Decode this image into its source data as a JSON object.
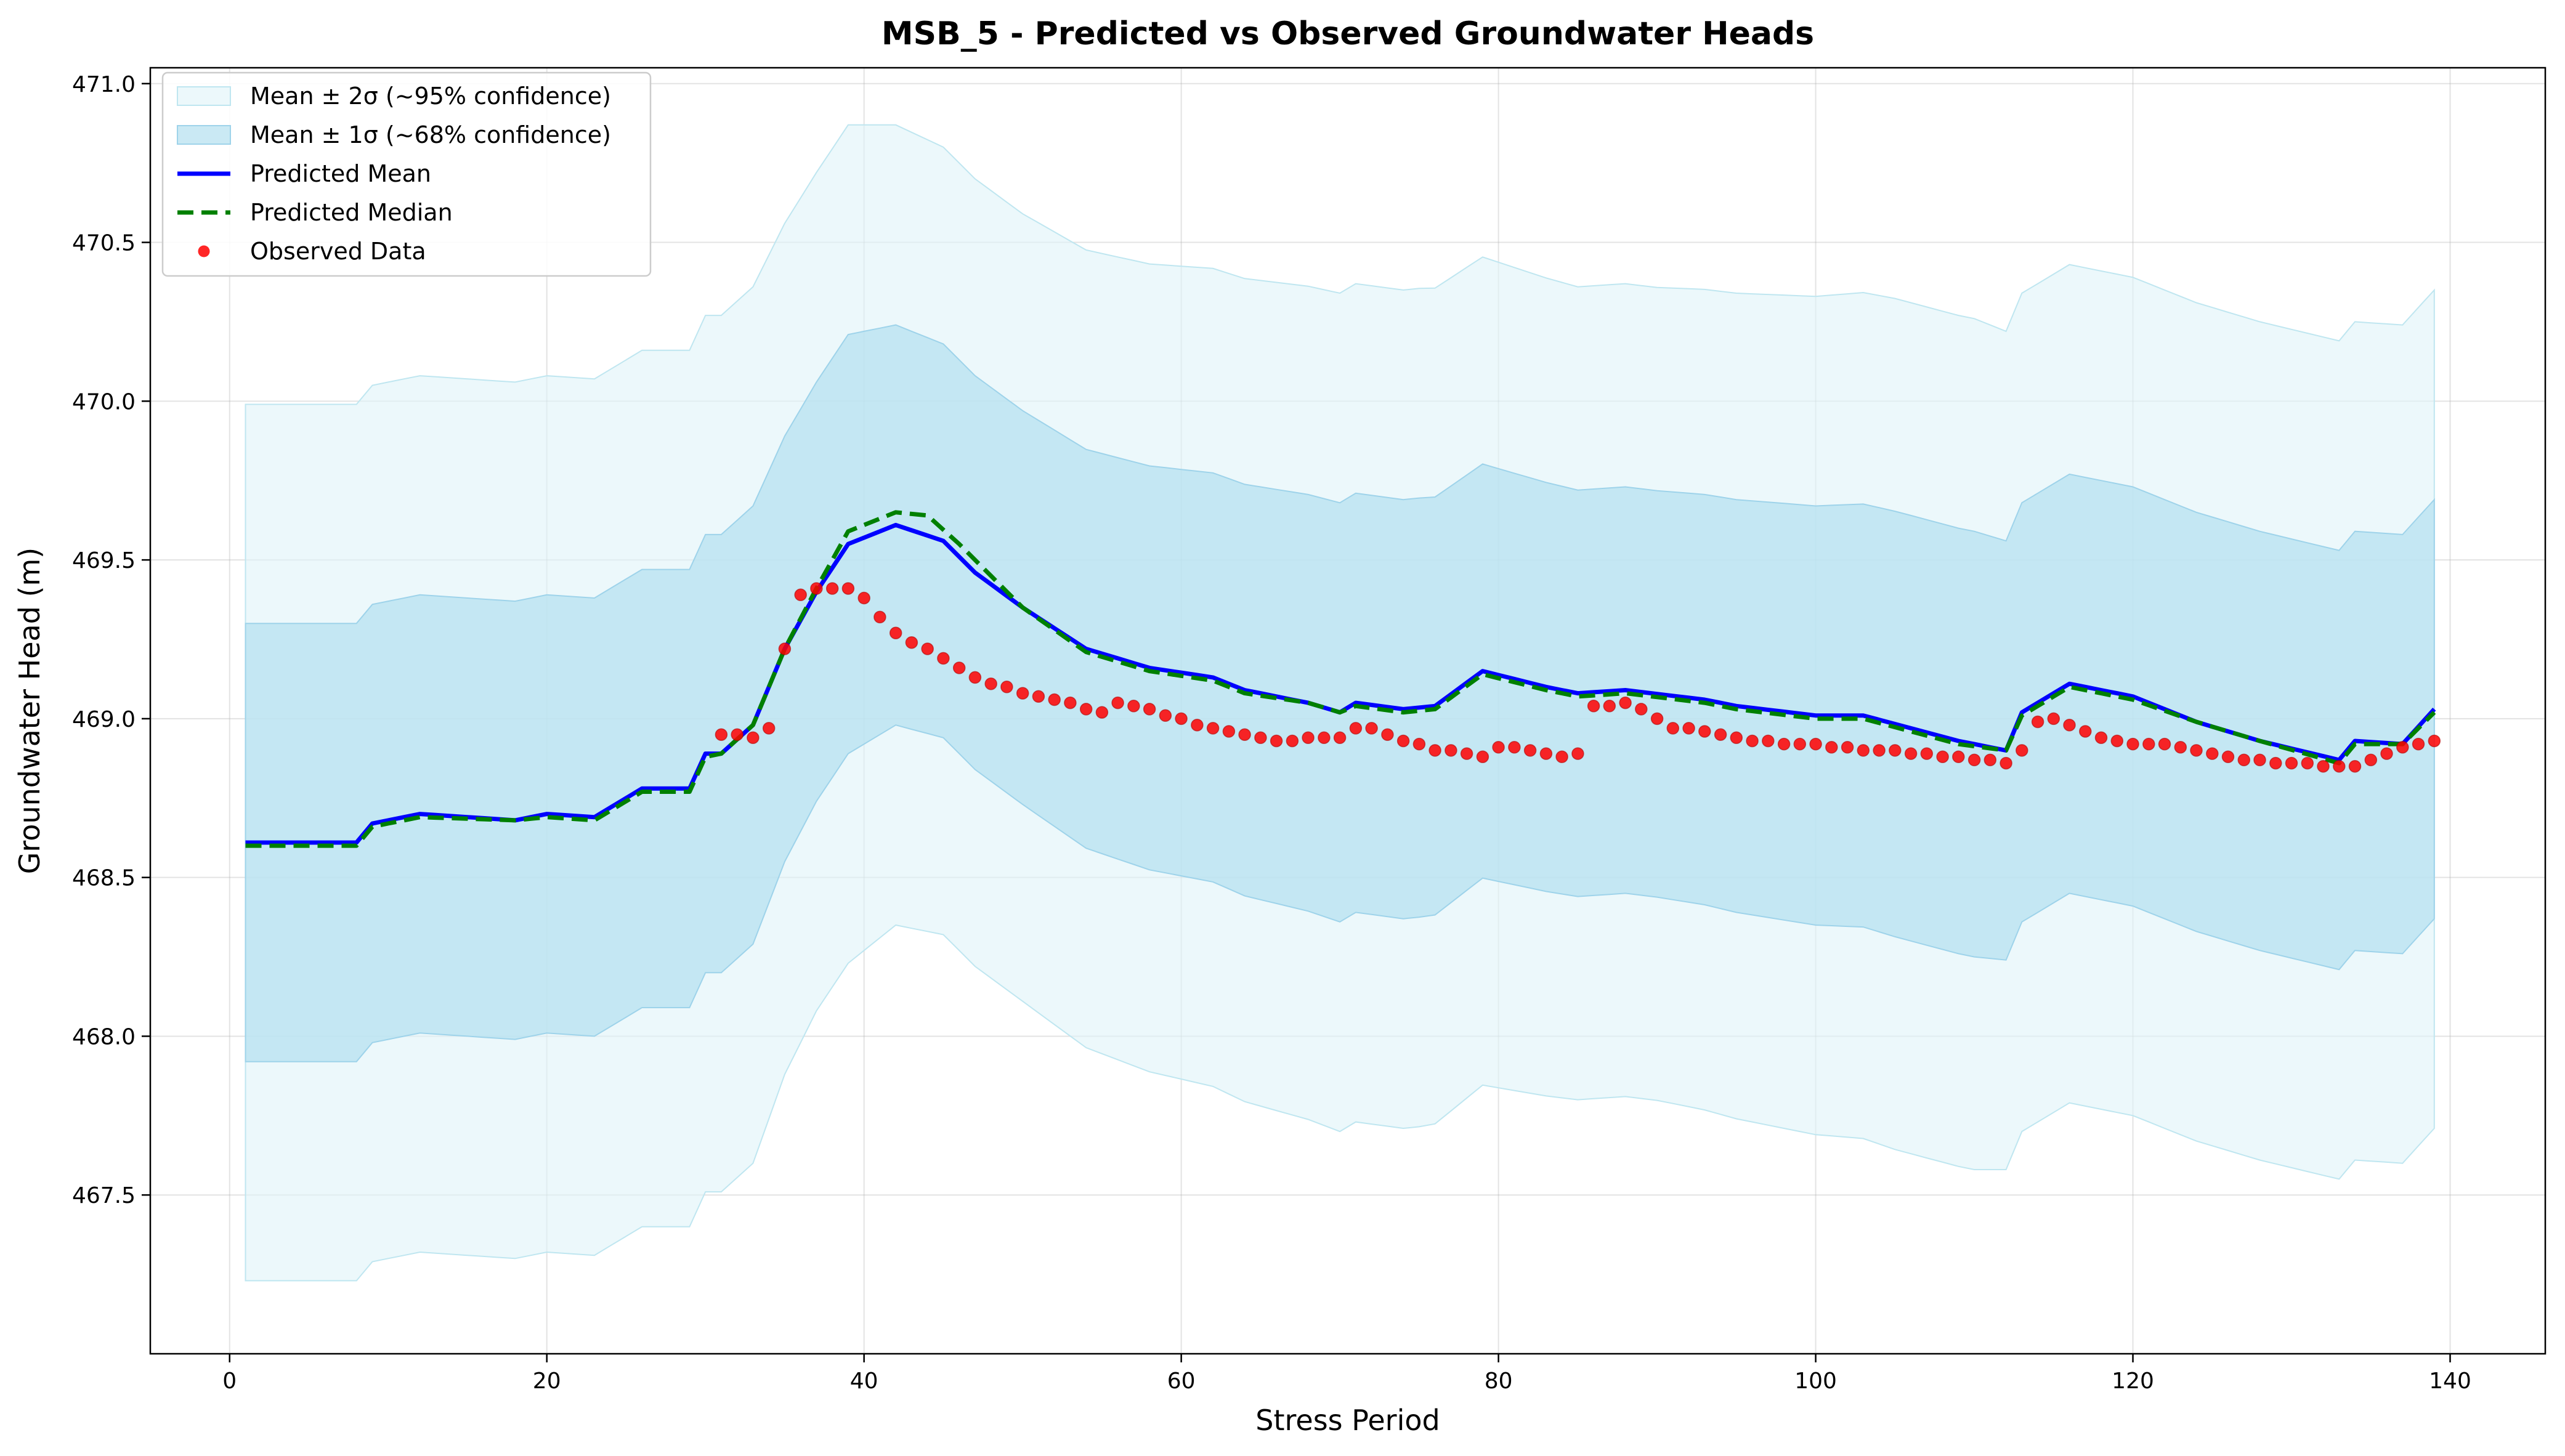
{
  "chart_data": {
    "type": "line",
    "title": "MSB_5 - Predicted vs Observed Groundwater Heads",
    "xlabel": "Stress Period",
    "ylabel": "Groundwater Head (m)",
    "xlim": [
      -5,
      146
    ],
    "ylim": [
      467.0,
      471.05
    ],
    "xticks": [
      0,
      20,
      40,
      60,
      80,
      100,
      120,
      140
    ],
    "yticks": [
      467.5,
      468.0,
      468.5,
      469.0,
      469.5,
      470.0,
      470.5,
      471.0
    ],
    "grid": true,
    "legend_position": "top-left",
    "colors": {
      "band2": "#e0f3f8",
      "band1": "#b3dff0",
      "mean": "#0000ff",
      "median": "#008000",
      "observed": "#ff0000"
    },
    "legend": [
      {
        "key": "band2",
        "label": "Mean ± 2σ (~95% confidence)"
      },
      {
        "key": "band1",
        "label": "Mean ± 1σ (~68% confidence)"
      },
      {
        "key": "mean",
        "label": "Predicted Mean"
      },
      {
        "key": "median",
        "label": "Predicted Median"
      },
      {
        "key": "observed",
        "label": "Observed Data"
      }
    ],
    "mean_knots": [
      [
        1,
        468.61
      ],
      [
        8,
        468.61
      ],
      [
        9,
        468.67
      ],
      [
        12,
        468.7
      ],
      [
        18,
        468.68
      ],
      [
        20,
        468.7
      ],
      [
        23,
        468.69
      ],
      [
        26,
        468.78
      ],
      [
        29,
        468.78
      ],
      [
        30,
        468.89
      ],
      [
        31,
        468.89
      ],
      [
        33,
        468.98
      ],
      [
        35,
        469.22
      ],
      [
        37,
        469.4
      ],
      [
        39,
        469.55
      ],
      [
        42,
        469.61
      ],
      [
        45,
        469.56
      ],
      [
        47,
        469.46
      ],
      [
        50,
        469.35
      ],
      [
        54,
        469.22
      ],
      [
        58,
        469.16
      ],
      [
        62,
        469.13
      ],
      [
        64,
        469.09
      ],
      [
        68,
        469.05
      ],
      [
        70,
        469.02
      ],
      [
        71,
        469.05
      ],
      [
        74,
        469.03
      ],
      [
        76,
        469.04
      ],
      [
        79,
        469.15
      ],
      [
        83,
        469.1
      ],
      [
        85,
        469.08
      ],
      [
        88,
        469.09
      ],
      [
        93,
        469.06
      ],
      [
        95,
        469.04
      ],
      [
        100,
        469.01
      ],
      [
        103,
        469.01
      ],
      [
        106,
        468.97
      ],
      [
        109,
        468.93
      ],
      [
        112,
        468.9
      ],
      [
        113,
        469.02
      ],
      [
        116,
        469.11
      ],
      [
        120,
        469.07
      ],
      [
        124,
        468.99
      ],
      [
        128,
        468.93
      ],
      [
        133,
        468.87
      ],
      [
        134,
        468.93
      ],
      [
        137,
        468.92
      ],
      [
        139,
        469.03
      ]
    ],
    "median_knots": [
      [
        1,
        468.6
      ],
      [
        8,
        468.6
      ],
      [
        9,
        468.66
      ],
      [
        12,
        468.69
      ],
      [
        18,
        468.68
      ],
      [
        20,
        468.69
      ],
      [
        23,
        468.68
      ],
      [
        26,
        468.77
      ],
      [
        29,
        468.77
      ],
      [
        30,
        468.88
      ],
      [
        31,
        468.89
      ],
      [
        33,
        468.98
      ],
      [
        35,
        469.22
      ],
      [
        37,
        469.41
      ],
      [
        39,
        469.59
      ],
      [
        42,
        469.65
      ],
      [
        44,
        469.64
      ],
      [
        46,
        469.55
      ],
      [
        50,
        469.35
      ],
      [
        54,
        469.21
      ],
      [
        58,
        469.15
      ],
      [
        62,
        469.12
      ],
      [
        64,
        469.08
      ],
      [
        68,
        469.05
      ],
      [
        70,
        469.02
      ],
      [
        71,
        469.04
      ],
      [
        74,
        469.02
      ],
      [
        76,
        469.03
      ],
      [
        79,
        469.14
      ],
      [
        83,
        469.09
      ],
      [
        85,
        469.07
      ],
      [
        88,
        469.08
      ],
      [
        93,
        469.05
      ],
      [
        95,
        469.03
      ],
      [
        100,
        469.0
      ],
      [
        103,
        469.0
      ],
      [
        106,
        468.96
      ],
      [
        109,
        468.92
      ],
      [
        112,
        468.9
      ],
      [
        113,
        469.01
      ],
      [
        116,
        469.1
      ],
      [
        120,
        469.06
      ],
      [
        124,
        468.99
      ],
      [
        128,
        468.93
      ],
      [
        133,
        468.86
      ],
      [
        134,
        468.92
      ],
      [
        137,
        468.92
      ],
      [
        139,
        469.02
      ]
    ],
    "sigma_knots": [
      [
        1,
        0.69
      ],
      [
        8,
        0.69
      ],
      [
        9,
        0.69
      ],
      [
        12,
        0.69
      ],
      [
        20,
        0.69
      ],
      [
        26,
        0.69
      ],
      [
        31,
        0.69
      ],
      [
        33,
        0.69
      ],
      [
        35,
        0.67
      ],
      [
        37,
        0.66
      ],
      [
        39,
        0.66
      ],
      [
        42,
        0.63
      ],
      [
        45,
        0.62
      ],
      [
        50,
        0.62
      ],
      [
        55,
        0.63
      ],
      [
        60,
        0.64
      ],
      [
        65,
        0.65
      ],
      [
        70,
        0.66
      ],
      [
        75,
        0.66
      ],
      [
        80,
        0.65
      ],
      [
        85,
        0.64
      ],
      [
        90,
        0.64
      ],
      [
        95,
        0.65
      ],
      [
        100,
        0.66
      ],
      [
        105,
        0.67
      ],
      [
        110,
        0.67
      ],
      [
        112,
        0.66
      ],
      [
        113,
        0.66
      ],
      [
        116,
        0.66
      ],
      [
        120,
        0.66
      ],
      [
        125,
        0.66
      ],
      [
        130,
        0.66
      ],
      [
        133,
        0.66
      ],
      [
        139,
        0.66
      ]
    ],
    "observed": [
      {
        "x": 31,
        "y": 468.95
      },
      {
        "x": 32,
        "y": 468.95
      },
      {
        "x": 33,
        "y": 468.94
      },
      {
        "x": 34,
        "y": 468.97
      },
      {
        "x": 35,
        "y": 469.22
      },
      {
        "x": 36,
        "y": 469.39
      },
      {
        "x": 37,
        "y": 469.41
      },
      {
        "x": 38,
        "y": 469.41
      },
      {
        "x": 39,
        "y": 469.41
      },
      {
        "x": 40,
        "y": 469.38
      },
      {
        "x": 41,
        "y": 469.32
      },
      {
        "x": 42,
        "y": 469.27
      },
      {
        "x": 43,
        "y": 469.24
      },
      {
        "x": 44,
        "y": 469.22
      },
      {
        "x": 45,
        "y": 469.19
      },
      {
        "x": 46,
        "y": 469.16
      },
      {
        "x": 47,
        "y": 469.13
      },
      {
        "x": 48,
        "y": 469.11
      },
      {
        "x": 49,
        "y": 469.1
      },
      {
        "x": 50,
        "y": 469.08
      },
      {
        "x": 51,
        "y": 469.07
      },
      {
        "x": 52,
        "y": 469.06
      },
      {
        "x": 53,
        "y": 469.05
      },
      {
        "x": 54,
        "y": 469.03
      },
      {
        "x": 55,
        "y": 469.02
      },
      {
        "x": 56,
        "y": 469.05
      },
      {
        "x": 57,
        "y": 469.04
      },
      {
        "x": 58,
        "y": 469.03
      },
      {
        "x": 59,
        "y": 469.01
      },
      {
        "x": 60,
        "y": 469.0
      },
      {
        "x": 61,
        "y": 468.98
      },
      {
        "x": 62,
        "y": 468.97
      },
      {
        "x": 63,
        "y": 468.96
      },
      {
        "x": 64,
        "y": 468.95
      },
      {
        "x": 65,
        "y": 468.94
      },
      {
        "x": 66,
        "y": 468.93
      },
      {
        "x": 67,
        "y": 468.93
      },
      {
        "x": 68,
        "y": 468.94
      },
      {
        "x": 69,
        "y": 468.94
      },
      {
        "x": 70,
        "y": 468.94
      },
      {
        "x": 71,
        "y": 468.97
      },
      {
        "x": 72,
        "y": 468.97
      },
      {
        "x": 73,
        "y": 468.95
      },
      {
        "x": 74,
        "y": 468.93
      },
      {
        "x": 75,
        "y": 468.92
      },
      {
        "x": 76,
        "y": 468.9
      },
      {
        "x": 77,
        "y": 468.9
      },
      {
        "x": 78,
        "y": 468.89
      },
      {
        "x": 79,
        "y": 468.88
      },
      {
        "x": 80,
        "y": 468.91
      },
      {
        "x": 81,
        "y": 468.91
      },
      {
        "x": 82,
        "y": 468.9
      },
      {
        "x": 83,
        "y": 468.89
      },
      {
        "x": 84,
        "y": 468.88
      },
      {
        "x": 85,
        "y": 468.89
      },
      {
        "x": 86,
        "y": 469.04
      },
      {
        "x": 87,
        "y": 469.04
      },
      {
        "x": 88,
        "y": 469.05
      },
      {
        "x": 89,
        "y": 469.03
      },
      {
        "x": 90,
        "y": 469.0
      },
      {
        "x": 91,
        "y": 468.97
      },
      {
        "x": 92,
        "y": 468.97
      },
      {
        "x": 93,
        "y": 468.96
      },
      {
        "x": 94,
        "y": 468.95
      },
      {
        "x": 95,
        "y": 468.94
      },
      {
        "x": 96,
        "y": 468.93
      },
      {
        "x": 97,
        "y": 468.93
      },
      {
        "x": 98,
        "y": 468.92
      },
      {
        "x": 99,
        "y": 468.92
      },
      {
        "x": 100,
        "y": 468.92
      },
      {
        "x": 101,
        "y": 468.91
      },
      {
        "x": 102,
        "y": 468.91
      },
      {
        "x": 103,
        "y": 468.9
      },
      {
        "x": 104,
        "y": 468.9
      },
      {
        "x": 105,
        "y": 468.9
      },
      {
        "x": 106,
        "y": 468.89
      },
      {
        "x": 107,
        "y": 468.89
      },
      {
        "x": 108,
        "y": 468.88
      },
      {
        "x": 109,
        "y": 468.88
      },
      {
        "x": 110,
        "y": 468.87
      },
      {
        "x": 111,
        "y": 468.87
      },
      {
        "x": 112,
        "y": 468.86
      },
      {
        "x": 113,
        "y": 468.9
      },
      {
        "x": 114,
        "y": 468.99
      },
      {
        "x": 115,
        "y": 469.0
      },
      {
        "x": 116,
        "y": 468.98
      },
      {
        "x": 117,
        "y": 468.96
      },
      {
        "x": 118,
        "y": 468.94
      },
      {
        "x": 119,
        "y": 468.93
      },
      {
        "x": 120,
        "y": 468.92
      },
      {
        "x": 121,
        "y": 468.92
      },
      {
        "x": 122,
        "y": 468.92
      },
      {
        "x": 123,
        "y": 468.91
      },
      {
        "x": 124,
        "y": 468.9
      },
      {
        "x": 125,
        "y": 468.89
      },
      {
        "x": 126,
        "y": 468.88
      },
      {
        "x": 127,
        "y": 468.87
      },
      {
        "x": 128,
        "y": 468.87
      },
      {
        "x": 129,
        "y": 468.86
      },
      {
        "x": 130,
        "y": 468.86
      },
      {
        "x": 131,
        "y": 468.86
      },
      {
        "x": 132,
        "y": 468.85
      },
      {
        "x": 133,
        "y": 468.85
      },
      {
        "x": 134,
        "y": 468.85
      },
      {
        "x": 135,
        "y": 468.87
      },
      {
        "x": 136,
        "y": 468.89
      },
      {
        "x": 137,
        "y": 468.91
      },
      {
        "x": 138,
        "y": 468.92
      },
      {
        "x": 139,
        "y": 468.93
      }
    ]
  }
}
